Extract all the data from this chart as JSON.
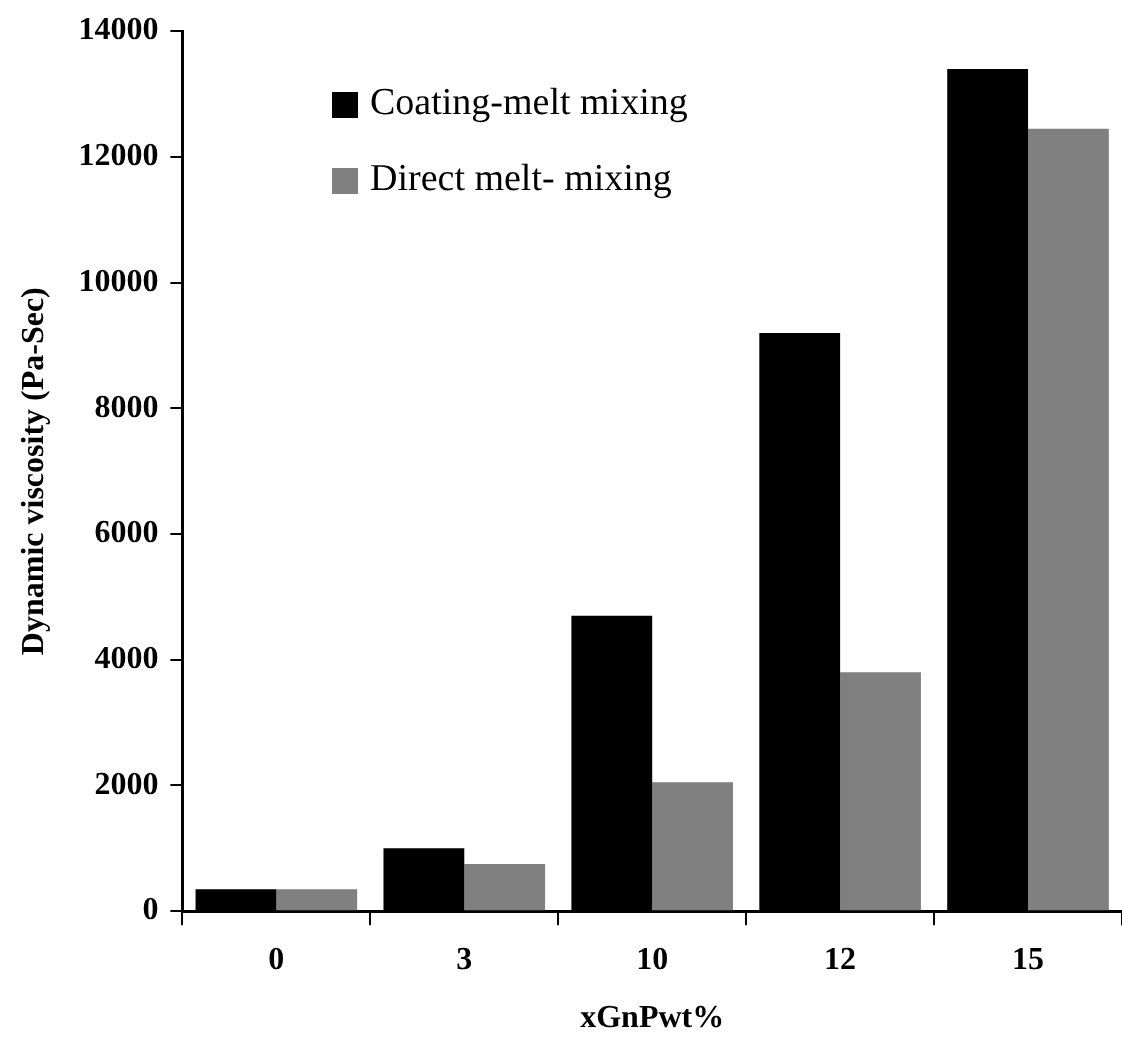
{
  "chart_data": {
    "type": "bar",
    "xlabel": "xGnPwt%",
    "ylabel": "Dynamic viscosity (Pa-Sec)",
    "categories": [
      "0",
      "3",
      "10",
      "12",
      "15"
    ],
    "series": [
      {
        "name": "Coating-melt mixing",
        "color": "#000000",
        "values": [
          350,
          1000,
          4700,
          9200,
          13400
        ]
      },
      {
        "name": "Direct melt- mixing",
        "color": "#808080",
        "values": [
          350,
          750,
          2050,
          3800,
          12450
        ]
      }
    ],
    "ylim": [
      0,
      14000
    ],
    "yticks": [
      0,
      2000,
      4000,
      6000,
      8000,
      10000,
      12000,
      14000
    ],
    "grid": false,
    "legend": "top left"
  }
}
